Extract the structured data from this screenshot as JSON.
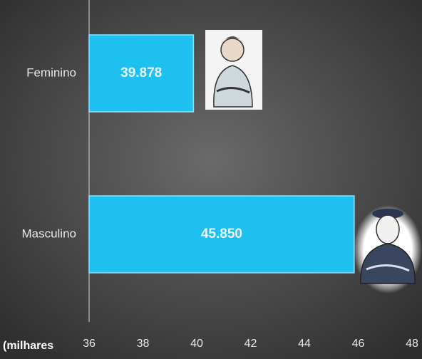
{
  "chart_data": {
    "type": "bar",
    "orientation": "horizontal",
    "x_label": "(milhares",
    "categories": [
      "Feminino",
      "Masculino"
    ],
    "values": [
      39.878,
      45.85
    ],
    "value_labels": [
      "39.878",
      "45.850"
    ],
    "color": "#1ec0f0",
    "xlim": [
      36,
      48
    ],
    "xticks": [
      36,
      38,
      40,
      42,
      44,
      46,
      48
    ]
  }
}
